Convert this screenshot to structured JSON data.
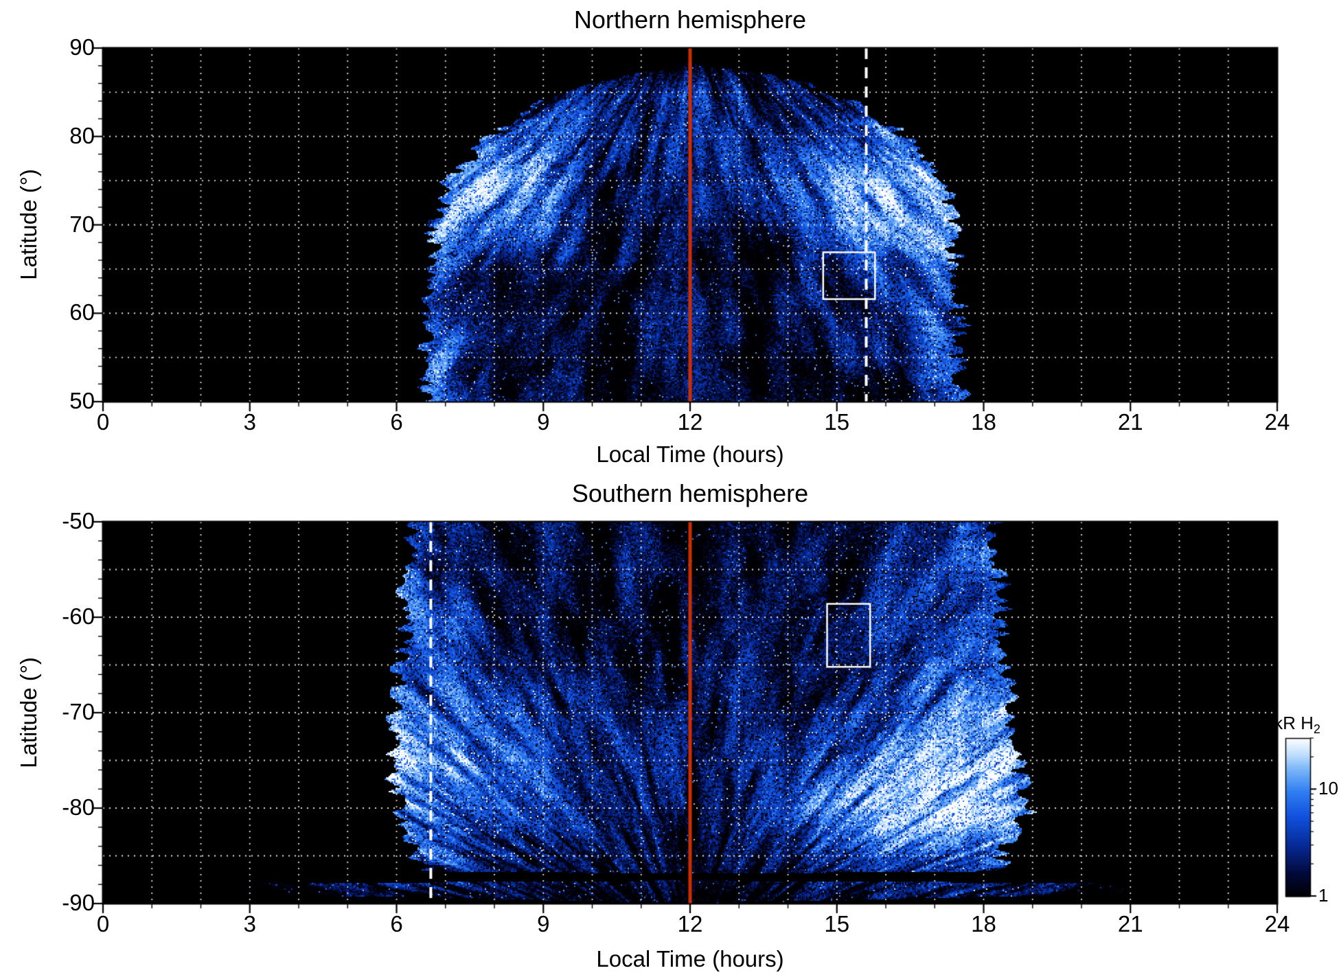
{
  "figure": {
    "background": "#ffffff"
  },
  "chart_data": {
    "type": "heatmap",
    "description": "Auroral H2 emission brightness (kR) versus local time and latitude for both hemispheres",
    "panels": [
      {
        "id": "north",
        "title": "Northern hemisphere",
        "xlabel": "Local Time (hours)",
        "ylabel": "Latitude (°)",
        "x_range": [
          0,
          24
        ],
        "y_top": 90,
        "y_bottom": 50,
        "x_ticks": [
          0,
          3,
          6,
          9,
          12,
          15,
          18,
          21,
          24
        ],
        "y_ticks": [
          90,
          80,
          70,
          60,
          50
        ],
        "x_minor_step": 1,
        "y_minor_step": 2,
        "grid_x_step": 1,
        "grid_y_step": 5,
        "grid_color": "#ffffff",
        "annotations": {
          "solid_vline": {
            "x": 12,
            "color": "#cc2e00",
            "width": 5
          },
          "dashed_vline": {
            "x": 15.6,
            "color": "#ffffff",
            "width": 4
          },
          "box": {
            "x0": 14.72,
            "x1": 15.78,
            "y0": 61.6,
            "y1": 66.9,
            "color": "#ffffff"
          }
        },
        "envelope": {
          "lat": [
            50,
            60,
            70,
            75,
            80,
            84,
            86,
            87.3,
            88.2,
            90
          ],
          "lt_min": [
            6.6,
            6.6,
            6.8,
            7.1,
            7.9,
            9.0,
            10.0,
            11.2,
            11.85,
            12.2
          ],
          "lt_max": [
            17.5,
            17.5,
            17.4,
            17.2,
            16.4,
            15.3,
            14.3,
            13.2,
            12.15,
            11.8
          ]
        },
        "intensity_grid": {
          "units": "kR",
          "lt_start": 0,
          "lt_step": 2,
          "lat_start": 90,
          "lat_step": -5,
          "rows": [
            [
              0,
              0,
              0,
              0,
              0,
              0,
              0,
              0,
              0,
              0,
              0,
              0,
              0
            ],
            [
              0,
              0,
              0,
              0,
              2,
              4,
              4.5,
              4,
              2,
              0,
              0,
              0,
              0
            ],
            [
              0,
              0,
              0,
              2,
              9,
              5,
              4,
              5.5,
              10,
              2,
              0,
              0,
              0
            ],
            [
              0,
              0,
              0,
              4,
              30,
              5,
              3,
              6,
              32,
              5,
              0,
              0,
              0
            ],
            [
              0,
              0,
              0,
              6,
              16,
              3,
              2.5,
              4,
              18,
              8,
              0,
              0,
              0
            ],
            [
              0,
              0,
              0,
              7,
              6,
              2.5,
              2.2,
              3,
              7,
              8,
              0,
              0,
              0
            ],
            [
              0,
              0,
              0,
              6,
              3.5,
              2.2,
              2,
              2.5,
              4,
              6,
              0,
              0,
              0
            ],
            [
              0,
              0,
              0,
              5,
              2.8,
              2,
              2,
              2.2,
              3,
              5,
              0,
              0,
              0
            ],
            [
              0,
              0,
              0,
              4,
              2.5,
              2,
              2,
              2,
              2.5,
              4,
              0,
              0,
              0
            ]
          ]
        }
      },
      {
        "id": "south",
        "title": "Southern hemisphere",
        "xlabel": "Local Time (hours)",
        "ylabel": "Latitude (°)",
        "x_range": [
          0,
          24
        ],
        "y_top": -50,
        "y_bottom": -90,
        "x_ticks": [
          0,
          3,
          6,
          9,
          12,
          15,
          18,
          21,
          24
        ],
        "y_ticks": [
          -50,
          -60,
          -70,
          -80,
          -90
        ],
        "x_minor_step": 1,
        "y_minor_step": 2,
        "grid_x_step": 1,
        "grid_y_step": 5,
        "grid_color": "#ffffff",
        "annotations": {
          "solid_vline": {
            "x": 12,
            "color": "#cc2e00",
            "width": 5
          },
          "dashed_vline": {
            "x": 6.7,
            "color": "#ffffff",
            "width": 4
          },
          "box": {
            "x0": 14.8,
            "x1": 15.68,
            "y0": -65.2,
            "y1": -58.6,
            "color": "#ffffff"
          }
        },
        "envelope": {
          "lat": [
            -90,
            -89.2,
            -88.8,
            -87.9,
            -87.6,
            -86.9,
            -86.6,
            -85,
            -80,
            -75,
            -70,
            -60,
            -50
          ],
          "lt_min": [
            12.2,
            4.8,
            3.2,
            2.9,
            11.9,
            11.95,
            6.5,
            6.4,
            6.0,
            5.9,
            6.0,
            6.15,
            6.3
          ],
          "lt_max": [
            11.8,
            19.2,
            20.8,
            21.1,
            12.1,
            12.05,
            18.3,
            18.4,
            18.9,
            18.7,
            18.6,
            18.4,
            18.2
          ]
        },
        "intensity_grid": {
          "units": "kR",
          "lt_start": 0,
          "lt_step": 2,
          "lat_start": -50,
          "lat_step": -5,
          "rows": [
            [
              0,
              0,
              0,
              4,
              2.5,
              2,
              2,
              2.2,
              2.8,
              4,
              0,
              0,
              0
            ],
            [
              0,
              0,
              0,
              5,
              3,
              2.2,
              2,
              2.4,
              3.2,
              5,
              0,
              0,
              0
            ],
            [
              0,
              0,
              0,
              6,
              4,
              2.4,
              2.1,
              2.6,
              4,
              6,
              0,
              0,
              0
            ],
            [
              0,
              0,
              0,
              7,
              5,
              2.5,
              2.2,
              3,
              5,
              8,
              0,
              0,
              0
            ],
            [
              0,
              0,
              1,
              12,
              8,
              3,
              2.5,
              3.5,
              9,
              16,
              1,
              0,
              0
            ],
            [
              0,
              0,
              2,
              28,
              14,
              4,
              3,
              5,
              16,
              30,
              2,
              0,
              0
            ],
            [
              0,
              0,
              1,
              12,
              9,
              4,
              3,
              6,
              28,
              30,
              2,
              0,
              0
            ],
            [
              0,
              0,
              1,
              6,
              5,
              3,
              2.5,
              3.5,
              7,
              10,
              1,
              0,
              0
            ],
            [
              0,
              0.5,
              1.5,
              2.5,
              2,
              1.5,
              1.2,
              1.5,
              2,
              2.5,
              1,
              0,
              0
            ]
          ]
        }
      }
    ],
    "colorbar": {
      "label_main": "kR H",
      "label_sub": "2",
      "scale": "log",
      "min": 1,
      "max": 30,
      "ticks": [
        {
          "value": 10,
          "label": "10"
        },
        {
          "value": 1,
          "label": "1"
        }
      ],
      "minor_ticks": [
        2,
        3,
        4,
        5,
        6,
        7,
        8,
        9,
        20,
        30
      ],
      "colormap": [
        [
          0.0,
          "#000003"
        ],
        [
          0.14,
          "#02093a"
        ],
        [
          0.32,
          "#062a96"
        ],
        [
          0.5,
          "#1150dd"
        ],
        [
          0.66,
          "#2f7ef2"
        ],
        [
          0.8,
          "#7ab5f8"
        ],
        [
          0.9,
          "#c3e0fd"
        ],
        [
          1.0,
          "#ffffff"
        ]
      ],
      "no_data_color": "#000000"
    },
    "texture": {
      "seeds": [
        3,
        17
      ],
      "theta_freq": 46,
      "r_freq": 5.5,
      "theta_freq2": 92,
      "r_freq2": 11
    }
  }
}
